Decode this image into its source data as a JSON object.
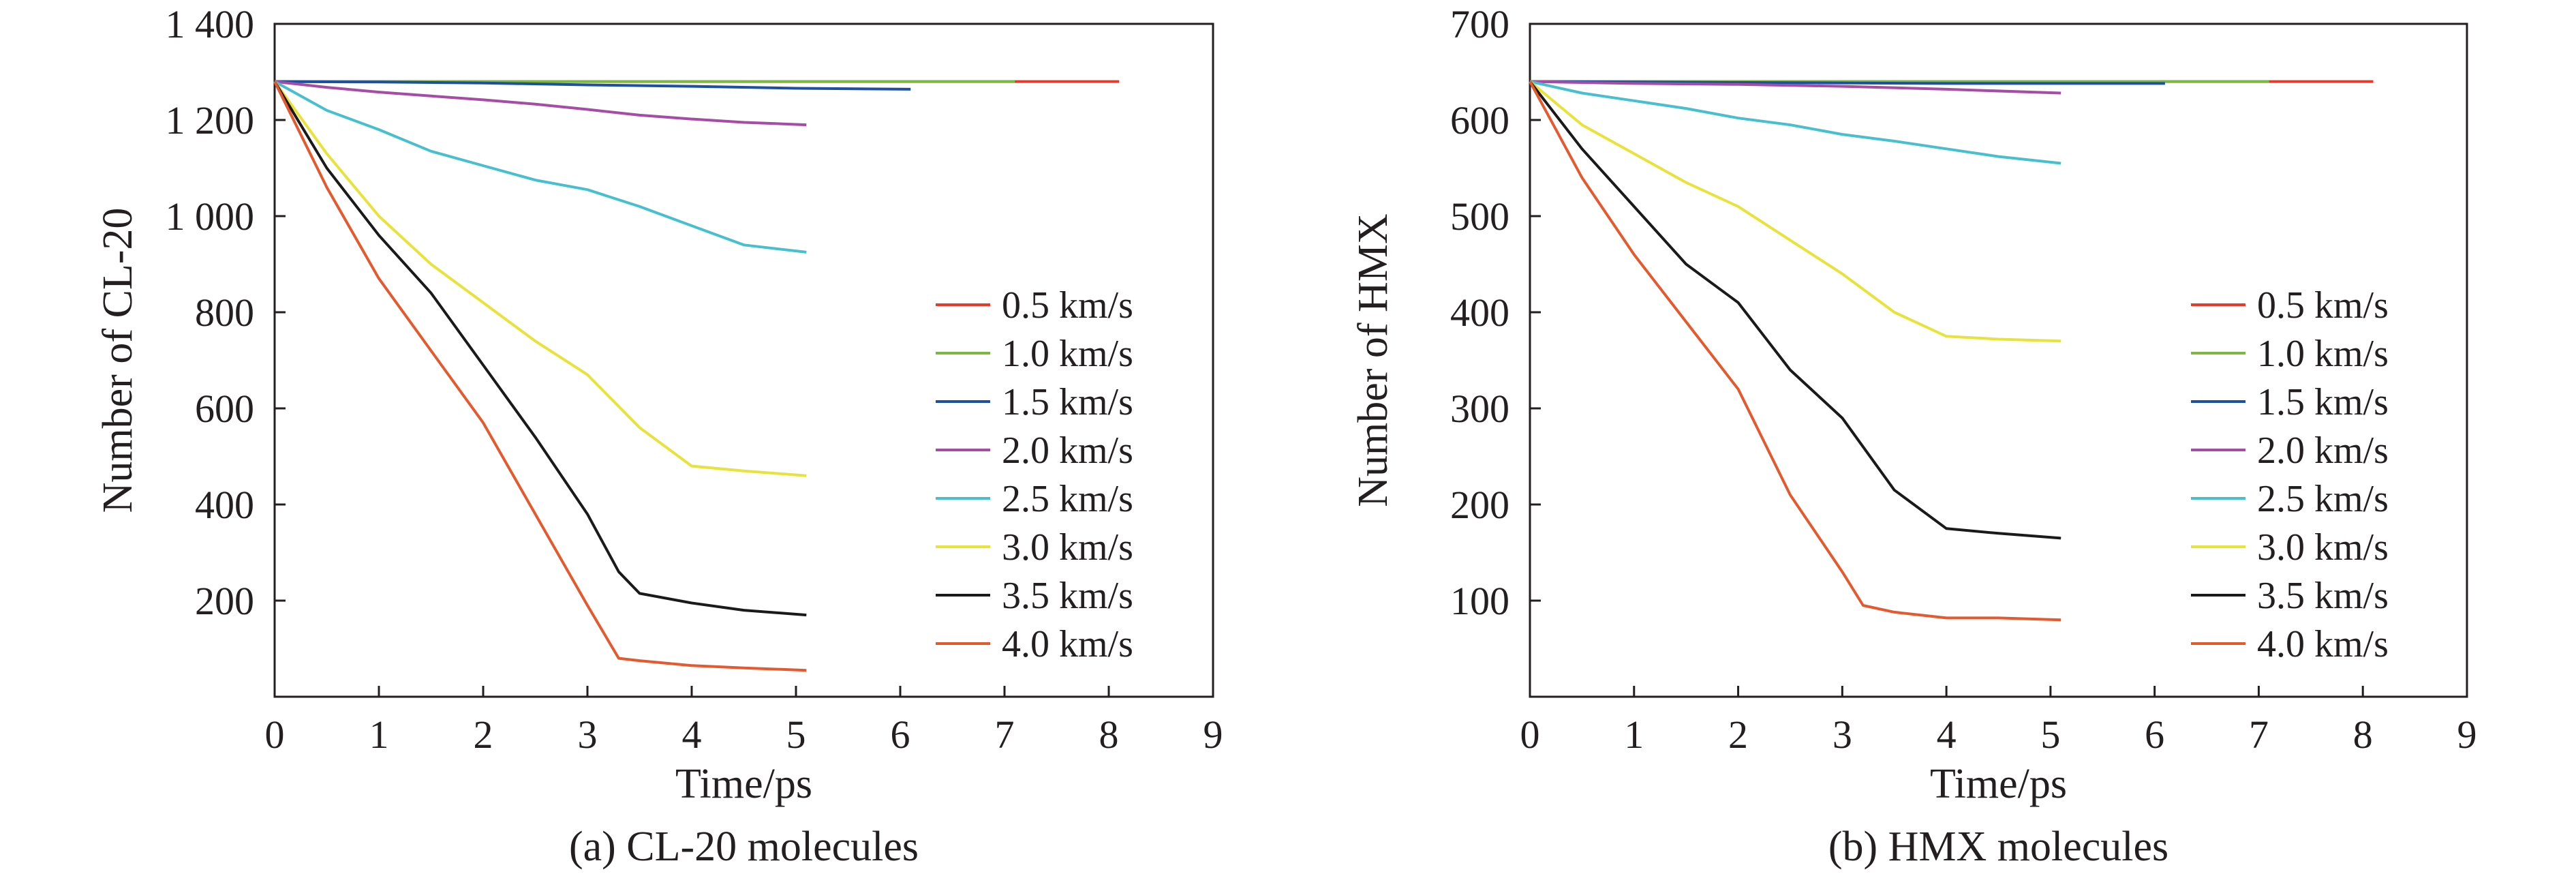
{
  "chart_data": [
    {
      "type": "line",
      "caption": "(a)  CL-20 molecules",
      "xlabel": "Time/ps",
      "ylabel": "Number of CL-20",
      "xlim": [
        0,
        9
      ],
      "ylim": [
        0,
        1400
      ],
      "x_ticks": [
        0,
        1,
        2,
        3,
        4,
        5,
        6,
        7,
        8,
        9
      ],
      "x_tick_labels": [
        "0",
        "1",
        "2",
        "3",
        "4",
        "5",
        "6",
        "7",
        "8",
        "9"
      ],
      "y_ticks": [
        200,
        400,
        600,
        800,
        1000,
        1200,
        1400
      ],
      "y_tick_labels": [
        "200",
        "400",
        "600",
        "800",
        "1 000",
        "1 200",
        "1 400"
      ],
      "grid": false,
      "legend_position": "right",
      "series": [
        {
          "name": "0.5 km/s",
          "color": "#e8392a",
          "x": [
            0,
            2,
            4,
            6,
            8.1
          ],
          "y": [
            1280,
            1280,
            1280,
            1280,
            1280
          ]
        },
        {
          "name": "1.0 km/s",
          "color": "#7cb83f",
          "x": [
            0,
            2,
            4,
            6,
            7.1
          ],
          "y": [
            1280,
            1280,
            1280,
            1280,
            1280
          ]
        },
        {
          "name": "1.5 km/s",
          "color": "#1d4fa3",
          "x": [
            0,
            1,
            2,
            3,
            4,
            5,
            6.1
          ],
          "y": [
            1280,
            1279,
            1277,
            1273,
            1270,
            1266,
            1264
          ]
        },
        {
          "name": "2.0 km/s",
          "color": "#a64ca6",
          "x": [
            0,
            0.5,
            1,
            1.5,
            2,
            2.5,
            3,
            3.5,
            4,
            4.5,
            5.1
          ],
          "y": [
            1280,
            1268,
            1258,
            1250,
            1242,
            1233,
            1222,
            1210,
            1202,
            1195,
            1190
          ]
        },
        {
          "name": "2.5 km/s",
          "color": "#46c0cf",
          "x": [
            0,
            0.5,
            1,
            1.5,
            2,
            2.5,
            3,
            3.5,
            4,
            4.5,
            5.1
          ],
          "y": [
            1280,
            1220,
            1180,
            1135,
            1105,
            1075,
            1055,
            1020,
            980,
            940,
            925
          ]
        },
        {
          "name": "3.0 km/s",
          "color": "#e8e33a",
          "x": [
            0,
            0.5,
            1,
            1.5,
            2,
            2.5,
            3,
            3.5,
            4,
            4.5,
            5.1
          ],
          "y": [
            1280,
            1130,
            1000,
            900,
            820,
            740,
            670,
            560,
            480,
            470,
            460
          ]
        },
        {
          "name": "3.5 km/s",
          "color": "#1a1a1a",
          "x": [
            0,
            0.5,
            1,
            1.5,
            2,
            2.5,
            3,
            3.3,
            3.5,
            4,
            4.5,
            5.1
          ],
          "y": [
            1280,
            1100,
            960,
            840,
            690,
            540,
            380,
            260,
            215,
            195,
            180,
            170
          ]
        },
        {
          "name": "4.0 km/s",
          "color": "#e45a2e",
          "x": [
            0,
            0.5,
            1,
            1.5,
            2,
            2.5,
            3,
            3.3,
            3.5,
            4,
            4.5,
            5.1
          ],
          "y": [
            1280,
            1060,
            870,
            720,
            570,
            380,
            190,
            80,
            75,
            65,
            60,
            55
          ]
        }
      ]
    },
    {
      "type": "line",
      "caption": "(b) HMX molecules",
      "xlabel": "Time/ps",
      "ylabel": "Number of HMX",
      "xlim": [
        0,
        9
      ],
      "ylim": [
        0,
        700
      ],
      "x_ticks": [
        0,
        1,
        2,
        3,
        4,
        5,
        6,
        7,
        8,
        9
      ],
      "x_tick_labels": [
        "0",
        "1",
        "2",
        "3",
        "4",
        "5",
        "6",
        "7",
        "8",
        "9"
      ],
      "y_ticks": [
        100,
        200,
        300,
        400,
        500,
        600,
        700
      ],
      "y_tick_labels": [
        "100",
        "200",
        "300",
        "400",
        "500",
        "600",
        "700"
      ],
      "grid": false,
      "legend_position": "right",
      "series": [
        {
          "name": "0.5 km/s",
          "color": "#e8392a",
          "x": [
            0,
            2,
            4,
            6,
            8.1
          ],
          "y": [
            640,
            640,
            640,
            640,
            640
          ]
        },
        {
          "name": "1.0 km/s",
          "color": "#7cb83f",
          "x": [
            0,
            2,
            4,
            6,
            7.1
          ],
          "y": [
            640,
            640,
            640,
            640,
            640
          ]
        },
        {
          "name": "1.5 km/s",
          "color": "#1d4fa3",
          "x": [
            0,
            2,
            4,
            6.1
          ],
          "y": [
            640,
            639,
            638,
            638
          ]
        },
        {
          "name": "2.0 km/s",
          "color": "#a64ca6",
          "x": [
            0,
            1,
            2,
            3,
            4,
            5.1
          ],
          "y": [
            640,
            638,
            637,
            635,
            632,
            628
          ]
        },
        {
          "name": "2.5 km/s",
          "color": "#46c0cf",
          "x": [
            0,
            0.5,
            1,
            1.5,
            2,
            2.5,
            3,
            3.5,
            4,
            4.5,
            5.1
          ],
          "y": [
            640,
            628,
            620,
            612,
            602,
            595,
            585,
            578,
            570,
            562,
            555
          ]
        },
        {
          "name": "3.0 km/s",
          "color": "#e8e33a",
          "x": [
            0,
            0.5,
            1,
            1.5,
            2,
            2.5,
            3,
            3.5,
            4,
            4.5,
            5.1
          ],
          "y": [
            640,
            595,
            565,
            535,
            510,
            475,
            440,
            400,
            375,
            372,
            370
          ]
        },
        {
          "name": "3.5 km/s",
          "color": "#1a1a1a",
          "x": [
            0,
            0.5,
            1,
            1.5,
            2,
            2.5,
            3,
            3.5,
            4,
            4.5,
            5.1
          ],
          "y": [
            640,
            570,
            510,
            450,
            410,
            340,
            290,
            215,
            175,
            170,
            165
          ]
        },
        {
          "name": "4.0 km/s",
          "color": "#e45a2e",
          "x": [
            0,
            0.5,
            1,
            1.5,
            2,
            2.5,
            3,
            3.2,
            3.5,
            4,
            4.5,
            5.1
          ],
          "y": [
            640,
            540,
            460,
            390,
            320,
            210,
            130,
            95,
            88,
            82,
            82,
            80
          ]
        }
      ]
    }
  ]
}
